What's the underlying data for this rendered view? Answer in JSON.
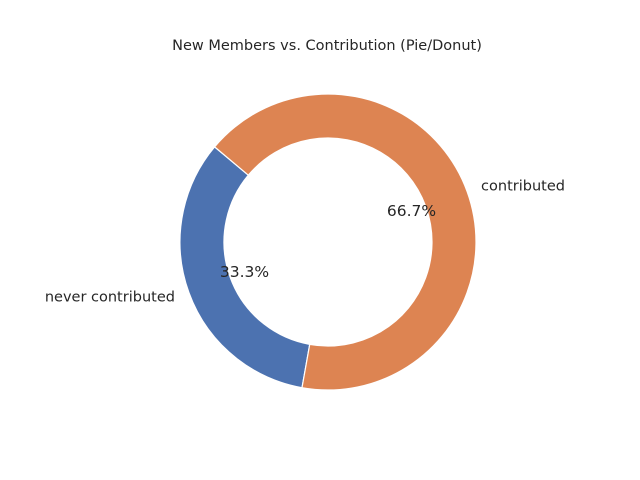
{
  "chart_data": {
    "type": "pie",
    "variant": "donut",
    "title": "New Members vs. Contribution (Pie/Donut)",
    "categories": [
      "never contributed",
      "contributed"
    ],
    "values": [
      33.3,
      66.7
    ],
    "percent_labels": [
      "33.3%",
      "66.7%"
    ],
    "colors": [
      "#4c72b0",
      "#dd8452"
    ],
    "start_angle_deg": 140,
    "direction": "counterclockwise",
    "legend": "none"
  }
}
